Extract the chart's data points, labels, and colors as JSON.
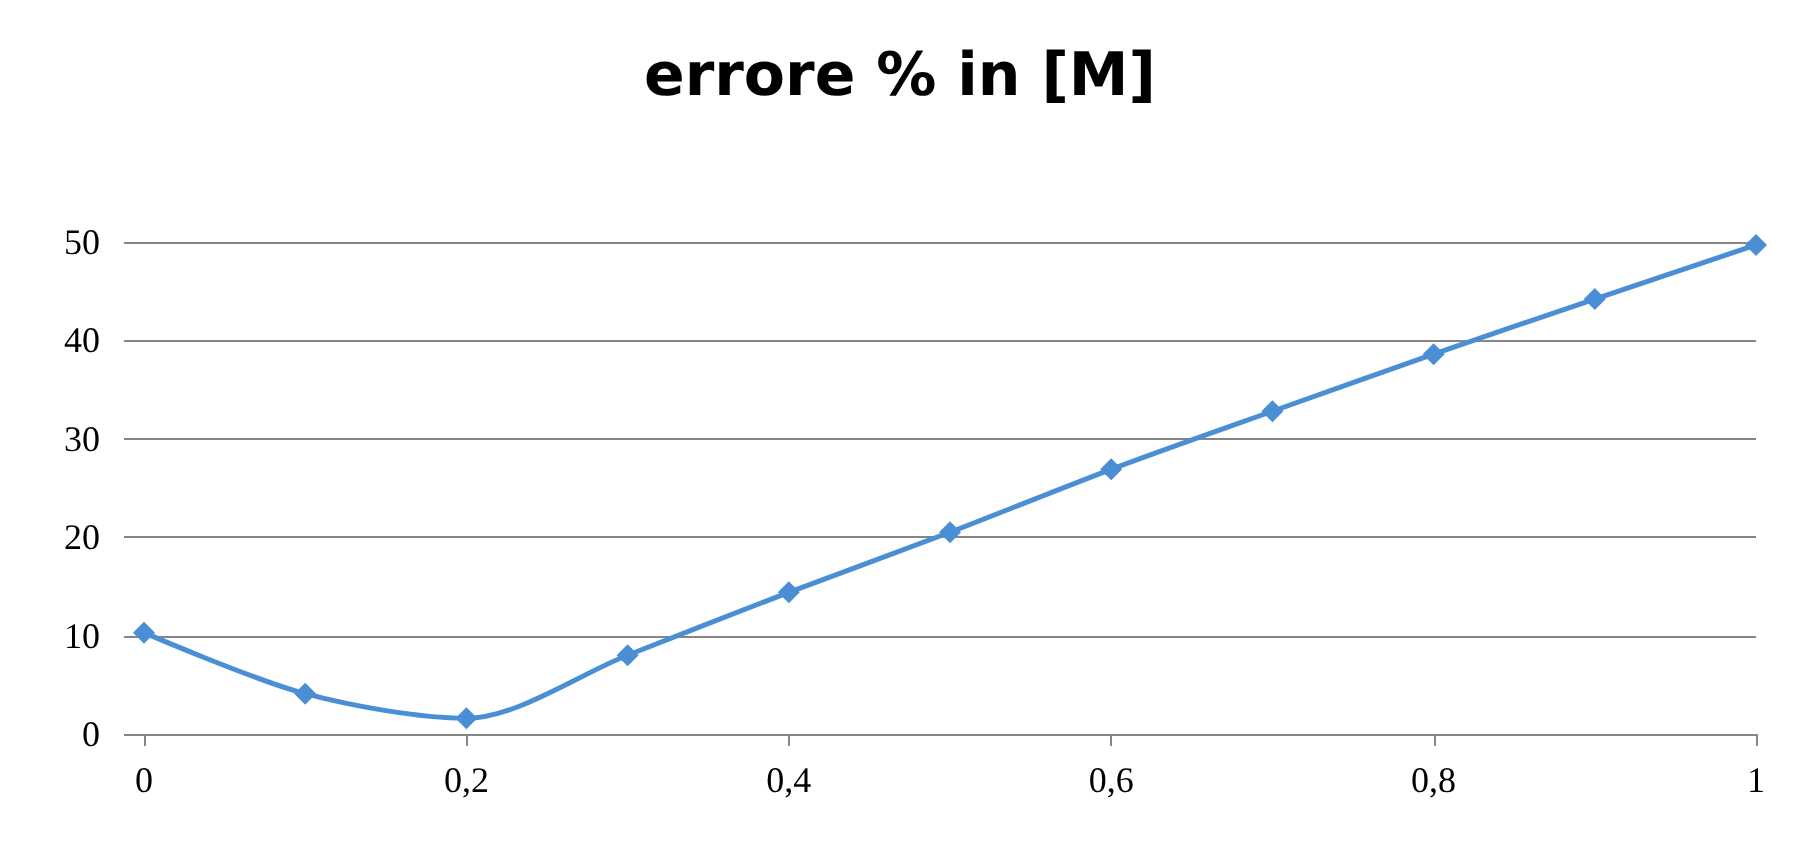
{
  "chart_data": {
    "type": "line",
    "title": "errore % in [M]",
    "x": [
      0,
      0.1,
      0.2,
      0.3,
      0.4,
      0.5,
      0.6,
      0.7,
      0.8,
      0.9,
      1
    ],
    "series": [
      {
        "color": "#4a8fd6",
        "values": [
          10.3,
          4.1,
          1.6,
          8.0,
          14.4,
          20.5,
          26.9,
          32.8,
          38.6,
          44.2,
          49.7
        ]
      }
    ],
    "xlim": [
      0,
      1
    ],
    "xticks": [
      0,
      {
        "value": 0.2,
        "label": "0,2"
      },
      {
        "value": 0.4,
        "label": "0,4"
      },
      {
        "value": 0.6,
        "label": "0,6"
      },
      {
        "value": 0.8,
        "label": "0,8"
      },
      1
    ],
    "ylim": [
      0,
      50
    ],
    "yticks": [
      0,
      10,
      20,
      30,
      40,
      50
    ],
    "grid": "y",
    "marker": "diamond",
    "line_style": "solid"
  }
}
